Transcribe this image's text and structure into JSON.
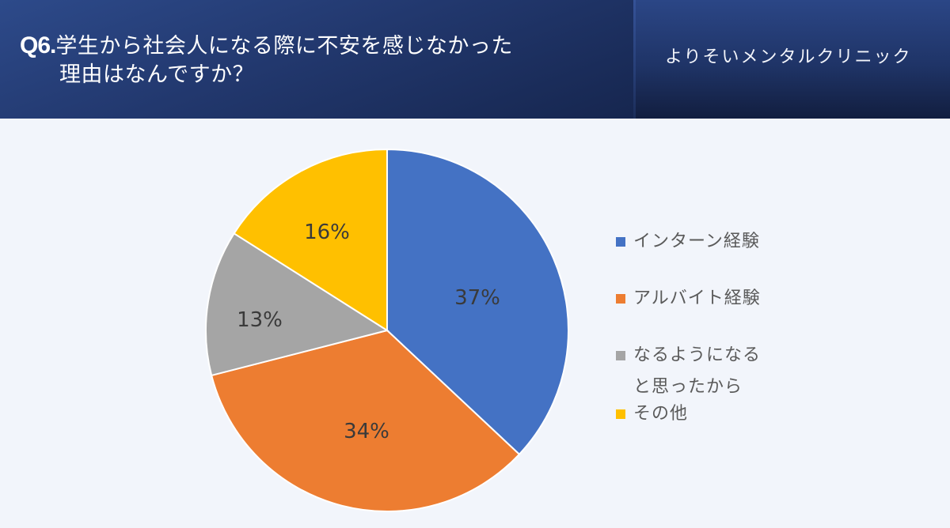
{
  "header": {
    "question_number": "Q6.",
    "title_line1": "学生から社会人になる際に不安を感じなかった",
    "title_line2": "理由はなんですか？",
    "clinic_name": "よりそいメンタルクリニック"
  },
  "legend": {
    "items": [
      {
        "label": "インターン経験",
        "color": "#4472c4"
      },
      {
        "label": "アルバイト経験",
        "color": "#ed7d31"
      },
      {
        "label_line1": "なるようになる",
        "label_line2": "と思ったから",
        "color": "#a5a5a5"
      },
      {
        "label": "その他",
        "color": "#ffc000"
      }
    ]
  },
  "slices": [
    {
      "label": "37%"
    },
    {
      "label": "34%"
    },
    {
      "label": "13%"
    },
    {
      "label": "16%"
    }
  ],
  "chart_data": {
    "type": "pie",
    "title": "Q6.学生から社会人になる際に不安を感じなかった理由はなんですか？",
    "categories": [
      "インターン経験",
      "アルバイト経験",
      "なるようになると思ったから",
      "その他"
    ],
    "values": [
      37,
      34,
      13,
      16
    ],
    "unit": "%",
    "colors": [
      "#4472c4",
      "#ed7d31",
      "#a5a5a5",
      "#ffc000"
    ],
    "start_angle": "12 o'clock, clockwise",
    "legend_position": "right",
    "data_labels": [
      "37%",
      "34%",
      "13%",
      "16%"
    ]
  }
}
